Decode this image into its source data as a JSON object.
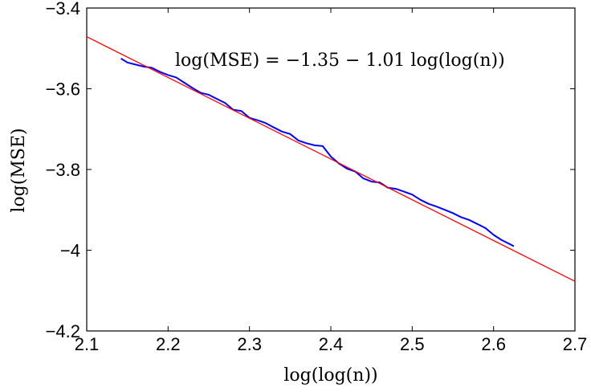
{
  "chart_data": {
    "type": "line",
    "title": "",
    "xlabel": "log(log(n))",
    "ylabel": "log(MSE)",
    "xlim": [
      2.1,
      2.7
    ],
    "ylim": [
      -4.2,
      -3.4
    ],
    "xticks": [
      2.1,
      2.2,
      2.3,
      2.4,
      2.5,
      2.6,
      2.7
    ],
    "yticks": [
      -4.2,
      -4.0,
      -3.8,
      -3.6,
      -3.4
    ],
    "xtick_labels": [
      "2.1",
      "2.2",
      "2.3",
      "2.4",
      "2.5",
      "2.6",
      "2.7"
    ],
    "ytick_labels": [
      "−4.2",
      "−4",
      "−3.8",
      "−3.6",
      "−3.4"
    ],
    "grid": false,
    "annotation": "log(MSE) = −1.35 − 1.01 log(log(n))",
    "series": [
      {
        "color": "#0000ff",
        "x": [
          2.142,
          2.15,
          2.16,
          2.17,
          2.18,
          2.19,
          2.2,
          2.21,
          2.22,
          2.23,
          2.24,
          2.25,
          2.26,
          2.27,
          2.28,
          2.29,
          2.3,
          2.31,
          2.32,
          2.33,
          2.34,
          2.35,
          2.36,
          2.37,
          2.38,
          2.39,
          2.4,
          2.41,
          2.42,
          2.43,
          2.44,
          2.45,
          2.46,
          2.47,
          2.48,
          2.49,
          2.5,
          2.51,
          2.52,
          2.53,
          2.54,
          2.55,
          2.56,
          2.57,
          2.58,
          2.59,
          2.6,
          2.61,
          2.625
        ],
        "y": [
          -3.525,
          -3.535,
          -3.54,
          -3.545,
          -3.548,
          -3.558,
          -3.566,
          -3.572,
          -3.585,
          -3.598,
          -3.61,
          -3.615,
          -3.625,
          -3.635,
          -3.652,
          -3.655,
          -3.672,
          -3.678,
          -3.685,
          -3.696,
          -3.706,
          -3.712,
          -3.728,
          -3.735,
          -3.74,
          -3.742,
          -3.768,
          -3.785,
          -3.798,
          -3.805,
          -3.822,
          -3.83,
          -3.832,
          -3.845,
          -3.848,
          -3.855,
          -3.862,
          -3.875,
          -3.885,
          -3.892,
          -3.9,
          -3.908,
          -3.918,
          -3.925,
          -3.935,
          -3.945,
          -3.962,
          -3.975,
          -3.99
        ]
      },
      {
        "color": "#ff0000",
        "x": [
          2.1,
          2.7
        ],
        "y": [
          -3.471,
          -4.077
        ]
      }
    ]
  }
}
